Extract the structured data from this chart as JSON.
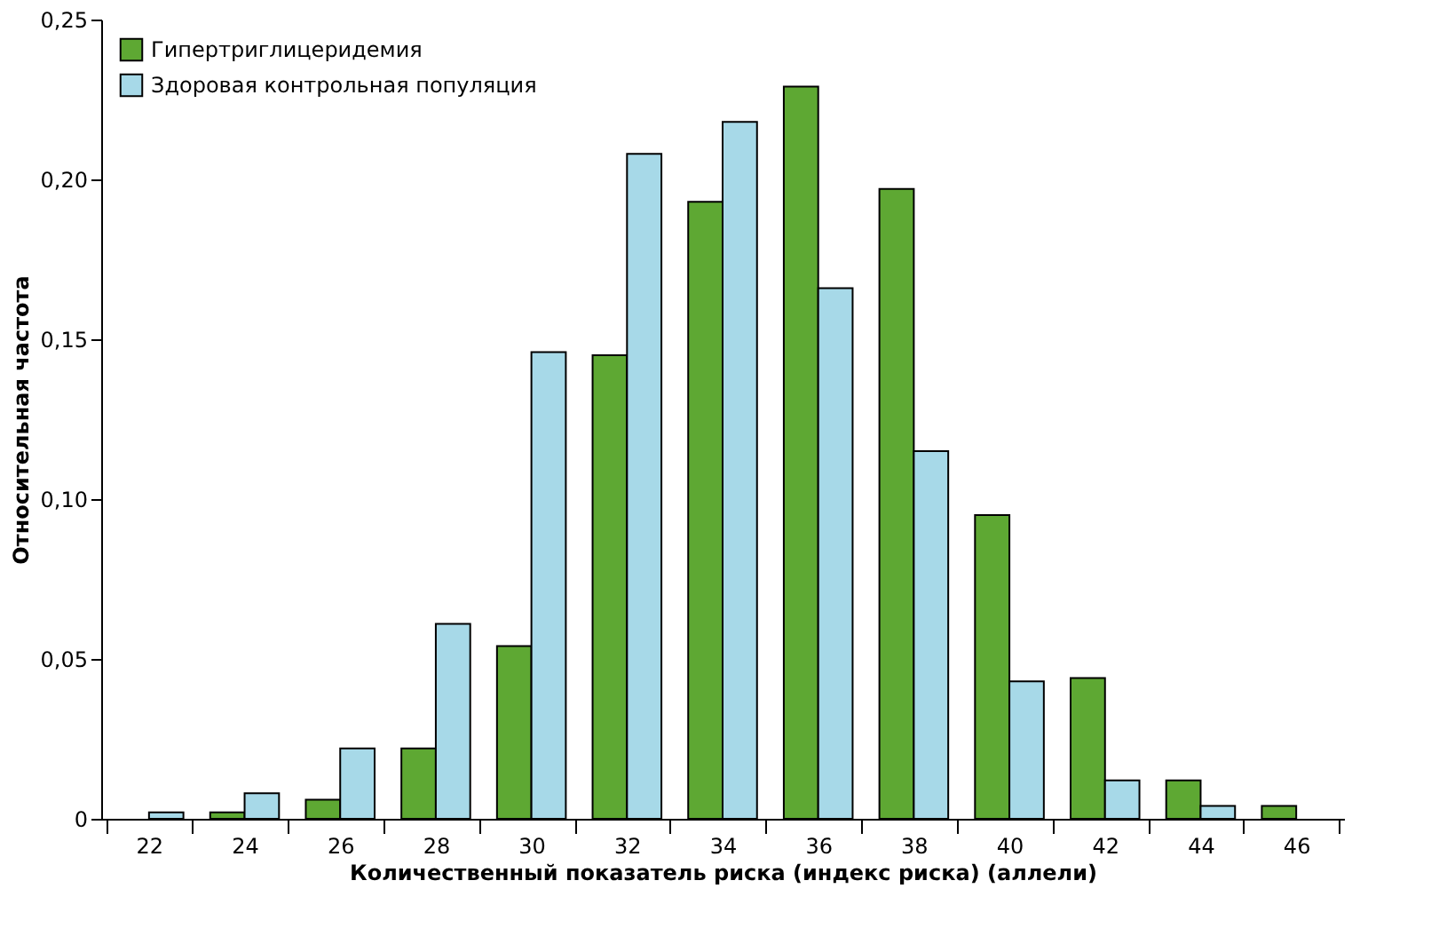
{
  "chart_data": {
    "type": "bar",
    "xlabel": "Количественный показатель риска (индекс риска) (аллели)",
    "ylabel": "Относительная частота",
    "categories": [
      "22",
      "24",
      "26",
      "28",
      "30",
      "32",
      "34",
      "36",
      "38",
      "40",
      "42",
      "44",
      "46"
    ],
    "series": [
      {
        "name": "Гипертриглицеридемия",
        "color": "#5ea833",
        "values": [
          null,
          0.002,
          0.006,
          0.022,
          0.054,
          0.145,
          0.193,
          0.229,
          0.197,
          0.095,
          0.044,
          0.012,
          0.004
        ]
      },
      {
        "name": "Здоровая контрольная популяция",
        "color": "#a7d9e8",
        "values": [
          0.002,
          0.008,
          0.022,
          0.061,
          0.146,
          0.208,
          0.218,
          0.166,
          0.115,
          0.043,
          0.012,
          0.004,
          null
        ]
      }
    ],
    "ylim": [
      0,
      0.25
    ],
    "yticks": [
      0,
      {
        "value": 0.05,
        "label": "0,05"
      },
      {
        "value": 0.1,
        "label": "0,10"
      },
      {
        "value": 0.15,
        "label": "0,15"
      },
      {
        "value": 0.2,
        "label": "0,20"
      },
      {
        "value": 0.25,
        "label": "0,25"
      }
    ],
    "grid": false,
    "legend": "top left"
  }
}
